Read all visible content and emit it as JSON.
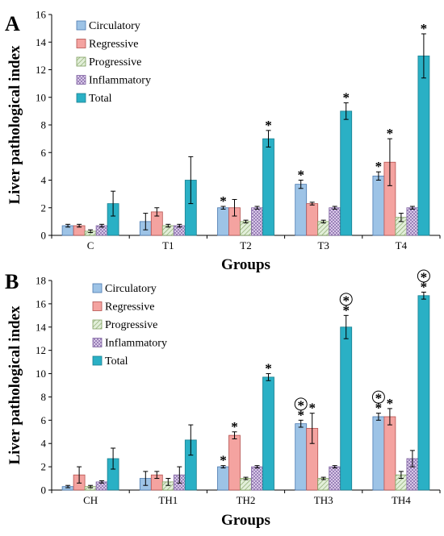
{
  "colors": {
    "Circulatory": "#9dc3e6",
    "Regressive": "#f4a3a0",
    "Progressive": "#e2efd9",
    "Inflammatory": "#d9c8e8",
    "Total": "#2ab0c5"
  },
  "chart_data": [
    {
      "type": "bar",
      "panel": "A",
      "xlabel": "Groups",
      "ylabel": "Liver pathological index",
      "ylim": [
        0,
        16
      ],
      "yticks": [
        "0",
        "2",
        "4",
        "6",
        "8",
        "10",
        "12",
        "14",
        "16"
      ],
      "legend_position": "top-left",
      "categories": [
        "C",
        "T1",
        "T2",
        "T3",
        "T4"
      ],
      "series": [
        {
          "name": "Circulatory",
          "values": [
            0.7,
            1.0,
            2.0,
            3.7,
            4.3
          ],
          "errors": [
            0.1,
            0.6,
            0.1,
            0.3,
            0.3
          ],
          "stars": [
            false,
            false,
            true,
            true,
            true
          ]
        },
        {
          "name": "Regressive",
          "values": [
            0.7,
            1.7,
            2.0,
            2.3,
            5.3
          ],
          "errors": [
            0.1,
            0.3,
            0.6,
            0.1,
            1.7
          ],
          "stars": [
            false,
            false,
            false,
            false,
            true
          ]
        },
        {
          "name": "Progressive",
          "values": [
            0.3,
            0.7,
            1.0,
            1.0,
            1.3
          ],
          "errors": [
            0.1,
            0.1,
            0.1,
            0.1,
            0.3
          ],
          "stars": [
            false,
            false,
            false,
            false,
            false
          ]
        },
        {
          "name": "Inflammatory",
          "values": [
            0.7,
            0.7,
            2.0,
            2.0,
            2.0
          ],
          "errors": [
            0.1,
            0.1,
            0.1,
            0.1,
            0.1
          ],
          "stars": [
            false,
            false,
            false,
            false,
            false
          ]
        },
        {
          "name": "Total",
          "values": [
            2.3,
            4.0,
            7.0,
            9.0,
            13.0
          ],
          "errors": [
            0.9,
            1.7,
            0.6,
            0.6,
            1.6
          ],
          "stars": [
            false,
            false,
            true,
            true,
            true
          ]
        }
      ]
    },
    {
      "type": "bar",
      "panel": "B",
      "xlabel": "Groups",
      "ylabel": "Liver pathological index",
      "ylim": [
        0,
        18
      ],
      "yticks": [
        "0",
        "2",
        "4",
        "6",
        "8",
        "10",
        "12",
        "14",
        "16",
        "18"
      ],
      "legend_position": "top-left",
      "categories": [
        "CH",
        "TH1",
        "TH2",
        "TH3",
        "TH4"
      ],
      "series": [
        {
          "name": "Circulatory",
          "values": [
            0.3,
            1.0,
            2.0,
            5.7,
            6.3
          ],
          "errors": [
            0.1,
            0.6,
            0.1,
            0.3,
            0.3
          ],
          "stars": [
            false,
            false,
            true,
            true,
            true
          ],
          "circled": [
            false,
            false,
            false,
            true,
            true
          ]
        },
        {
          "name": "Regressive",
          "values": [
            1.3,
            1.3,
            4.7,
            5.3,
            6.3
          ],
          "errors": [
            0.7,
            0.3,
            0.3,
            1.3,
            0.7
          ],
          "stars": [
            false,
            false,
            true,
            true,
            true
          ],
          "circled": [
            false,
            false,
            false,
            false,
            false
          ]
        },
        {
          "name": "Progressive",
          "values": [
            0.3,
            0.7,
            1.0,
            1.0,
            1.3
          ],
          "errors": [
            0.1,
            0.3,
            0.1,
            0.1,
            0.3
          ],
          "stars": [
            false,
            false,
            false,
            false,
            false
          ],
          "circled": [
            false,
            false,
            false,
            false,
            false
          ]
        },
        {
          "name": "Inflammatory",
          "values": [
            0.7,
            1.3,
            2.0,
            2.0,
            2.7
          ],
          "errors": [
            0.1,
            0.7,
            0.1,
            0.1,
            0.7
          ],
          "stars": [
            false,
            false,
            false,
            false,
            false
          ],
          "circled": [
            false,
            false,
            false,
            false,
            false
          ]
        },
        {
          "name": "Total",
          "values": [
            2.7,
            4.3,
            9.7,
            14.0,
            16.7
          ],
          "errors": [
            0.9,
            1.3,
            0.3,
            1.0,
            0.3
          ],
          "stars": [
            false,
            false,
            true,
            true,
            true
          ],
          "circled": [
            false,
            false,
            false,
            true,
            true
          ]
        }
      ]
    }
  ]
}
